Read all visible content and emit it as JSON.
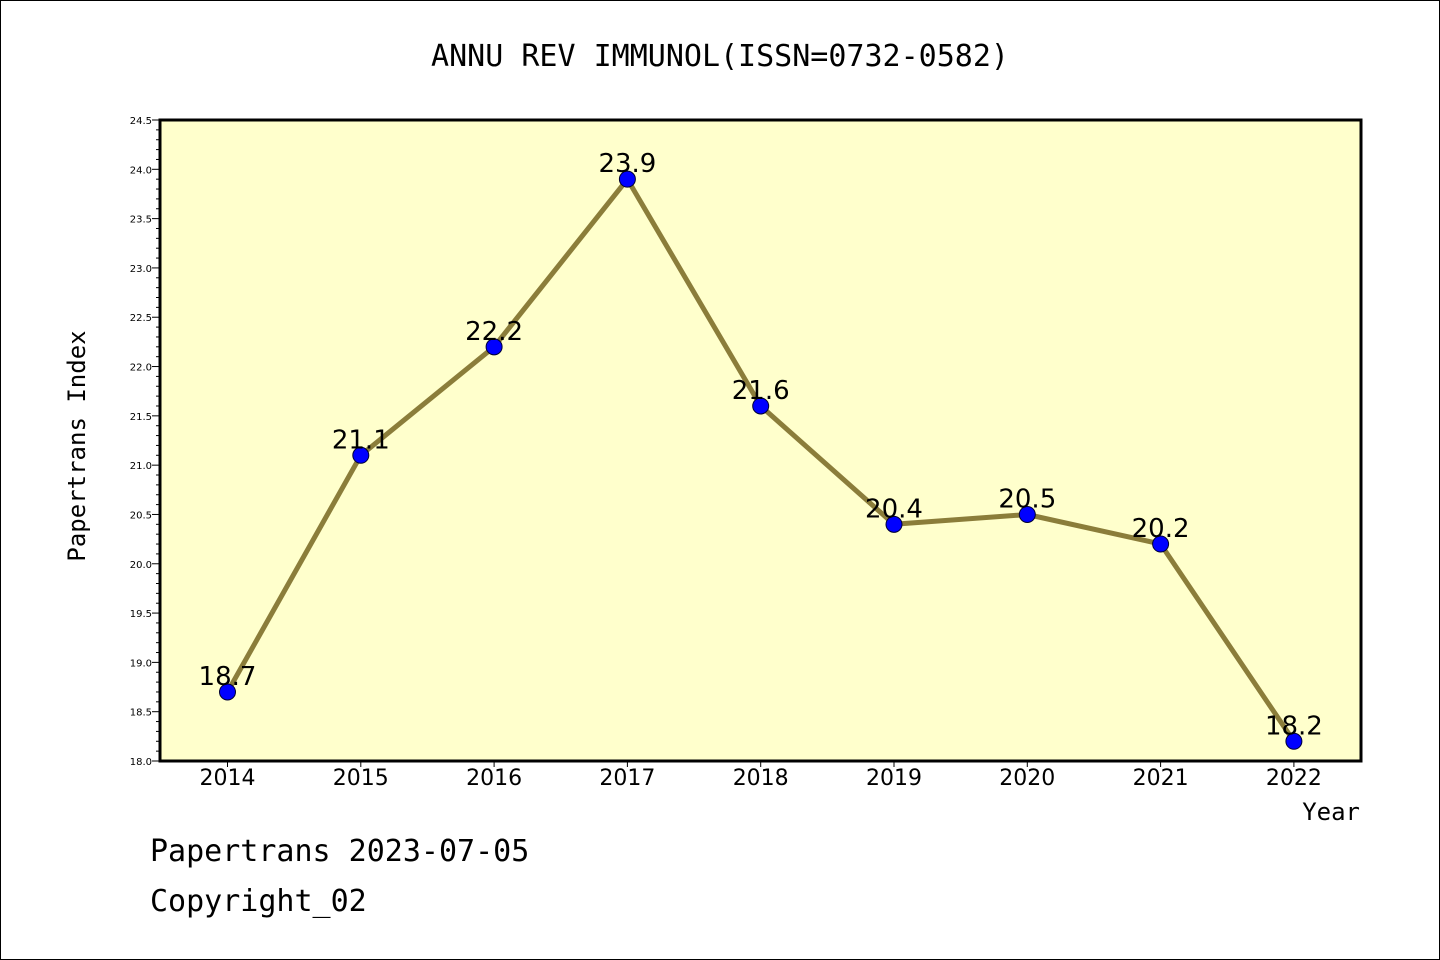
{
  "chart_data": {
    "type": "line",
    "title": "ANNU REV IMMUNOL(ISSN=0732-0582)",
    "xlabel": "Year",
    "ylabel": "Papertrans Index",
    "categories": [
      "2014",
      "2015",
      "2016",
      "2017",
      "2018",
      "2019",
      "2020",
      "2021",
      "2022"
    ],
    "series": [
      {
        "values": [
          18.7,
          21.1,
          22.2,
          23.9,
          21.6,
          20.4,
          20.5,
          20.2,
          18.2
        ],
        "labels": [
          "18.7",
          "21.1",
          "22.2",
          "23.9",
          "21.6",
          "20.4",
          "20.5",
          "20.2",
          "18.2"
        ]
      }
    ],
    "ylim": [
      18.0,
      24.5
    ],
    "yticks": [
      "18.0",
      "18.5",
      "19.0",
      "19.5",
      "20.0",
      "20.5",
      "21.0",
      "21.5",
      "22.0",
      "22.5",
      "23.0",
      "23.5",
      "24.0",
      "24.5"
    ],
    "grid": false,
    "colors": {
      "plot_background": "#ffffcc",
      "line": "#8b7d3a",
      "marker": "#0000ff"
    }
  },
  "footer": {
    "line1": "Papertrans 2023-07-05",
    "line2": "Copyright_02"
  }
}
